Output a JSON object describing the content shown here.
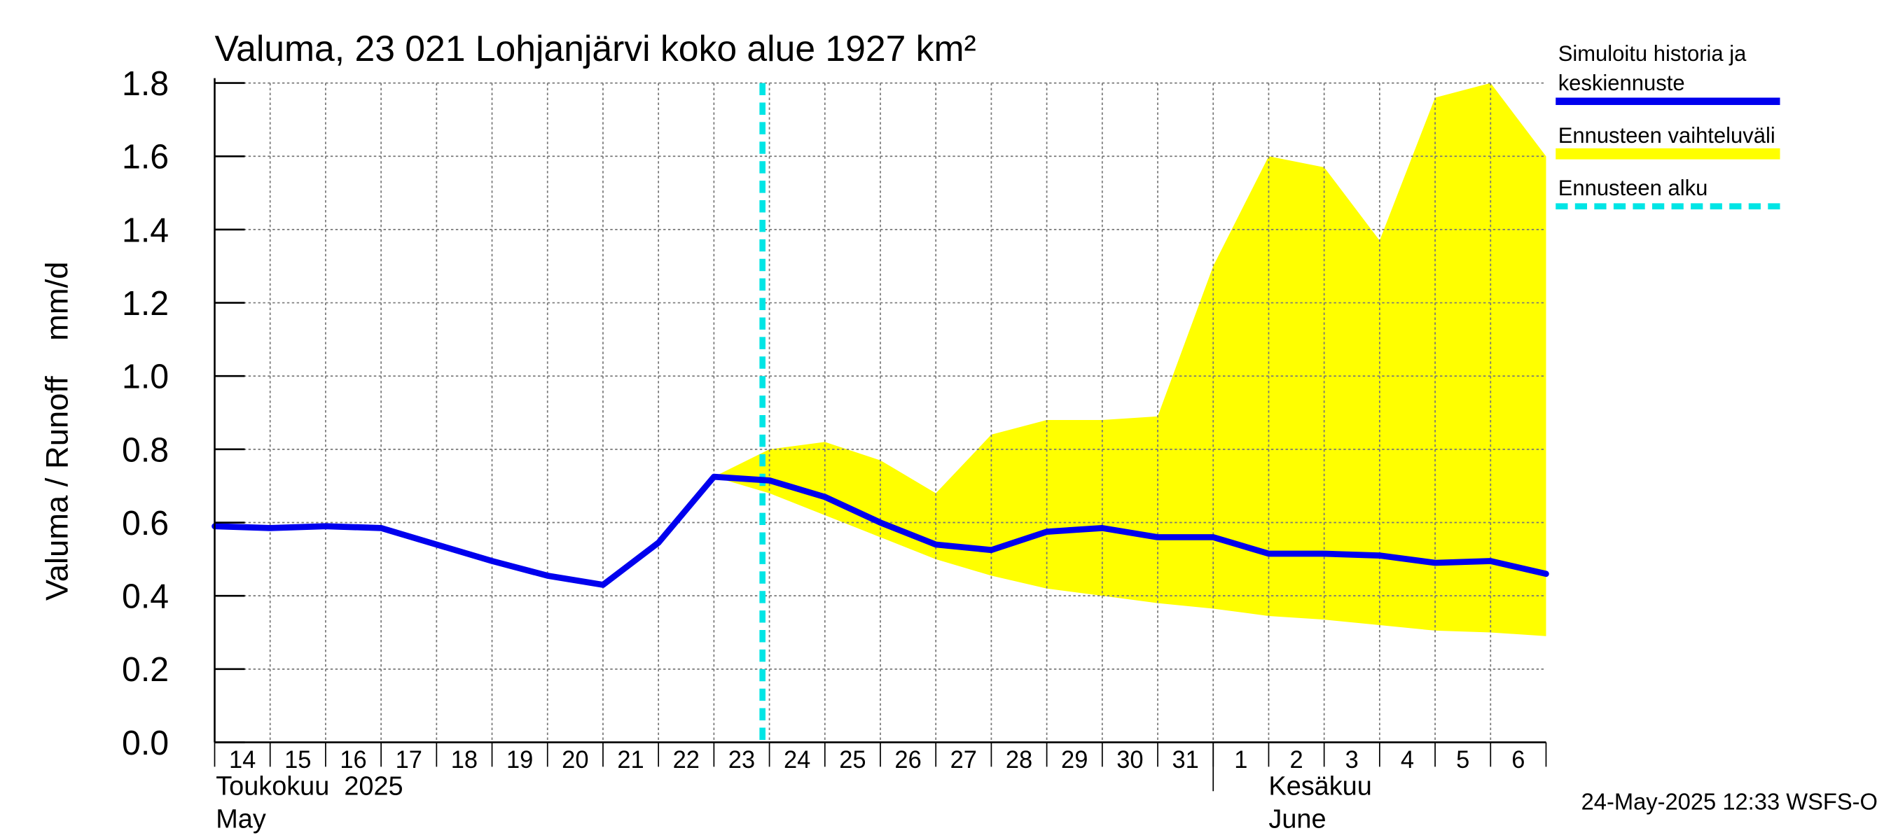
{
  "chart_data": {
    "type": "line",
    "title": "Valuma, 23 021 Lohjanjärvi koko alue 1927 km²",
    "ylabel": "Valuma / Runoff    mm/d",
    "ylim": [
      0.0,
      1.8
    ],
    "y_ticks": [
      "0.0",
      "0.2",
      "0.4",
      "0.6",
      "0.8",
      "1.0",
      "1.2",
      "1.4",
      "1.6",
      "1.8"
    ],
    "y_tick_values": [
      0.0,
      0.2,
      0.4,
      0.6,
      0.8,
      1.0,
      1.2,
      1.4,
      1.6,
      1.8
    ],
    "x_tick_labels": [
      "14",
      "15",
      "16",
      "17",
      "18",
      "19",
      "20",
      "21",
      "22",
      "23",
      "24",
      "25",
      "26",
      "27",
      "28",
      "29",
      "30",
      "31",
      "1",
      "2",
      "3",
      "4",
      "5",
      "6"
    ],
    "x_start": "2025-05-14",
    "x_end": "2025-06-07",
    "grid": true,
    "month_labels": {
      "may_fi": "Toukokuu  2025",
      "may_en": "May",
      "june_fi": "Kesäkuu",
      "june_en": "June"
    },
    "forecast_start": "2025-05-23T21:00",
    "series": [
      {
        "name": "Simuloitu historia ja keskiennuste",
        "color": "#0000ee",
        "x": [
          "2025-05-14",
          "2025-05-15",
          "2025-05-16",
          "2025-05-17",
          "2025-05-18",
          "2025-05-19",
          "2025-05-20",
          "2025-05-21",
          "2025-05-22",
          "2025-05-23",
          "2025-05-24",
          "2025-05-25",
          "2025-05-26",
          "2025-05-27",
          "2025-05-28",
          "2025-05-29",
          "2025-05-30",
          "2025-05-31",
          "2025-06-01",
          "2025-06-02",
          "2025-06-03",
          "2025-06-04",
          "2025-06-05",
          "2025-06-06",
          "2025-06-07"
        ],
        "y": [
          0.59,
          0.585,
          0.59,
          0.585,
          0.54,
          0.495,
          0.455,
          0.43,
          0.545,
          0.725,
          0.715,
          0.67,
          0.6,
          0.54,
          0.525,
          0.575,
          0.585,
          0.56,
          0.56,
          0.515,
          0.515,
          0.51,
          0.49,
          0.495,
          0.46
        ]
      }
    ],
    "band": {
      "name": "Ennusteen vaihteluväli",
      "color": "#ffff00",
      "x": [
        "2025-05-23",
        "2025-05-24",
        "2025-05-25",
        "2025-05-26",
        "2025-05-27",
        "2025-05-28",
        "2025-05-29",
        "2025-05-30",
        "2025-05-31",
        "2025-06-01",
        "2025-06-02",
        "2025-06-03",
        "2025-06-04",
        "2025-06-05",
        "2025-06-06",
        "2025-06-07"
      ],
      "lower": [
        0.725,
        0.68,
        0.62,
        0.56,
        0.5,
        0.455,
        0.42,
        0.4,
        0.38,
        0.365,
        0.345,
        0.335,
        0.32,
        0.305,
        0.3,
        0.29
      ],
      "upper": [
        0.725,
        0.8,
        0.82,
        0.77,
        0.68,
        0.84,
        0.88,
        0.88,
        0.89,
        1.3,
        1.6,
        1.57,
        1.37,
        1.76,
        1.8,
        1.6
      ]
    },
    "legend": {
      "placement": "right",
      "entries": [
        {
          "label_line1": "Simuloitu historia ja",
          "label_line2": "keskiennuste",
          "color": "#0000ee",
          "style": "solid"
        },
        {
          "label_line1": "Ennusteen vaihteluväli",
          "label_line2": "",
          "color": "#ffff00",
          "style": "solid"
        },
        {
          "label_line1": "Ennusteen alku",
          "label_line2": "",
          "color": "#00e5e5",
          "style": "dashed"
        }
      ]
    },
    "timestamp": "24-May-2025 12:33 WSFS-O"
  }
}
